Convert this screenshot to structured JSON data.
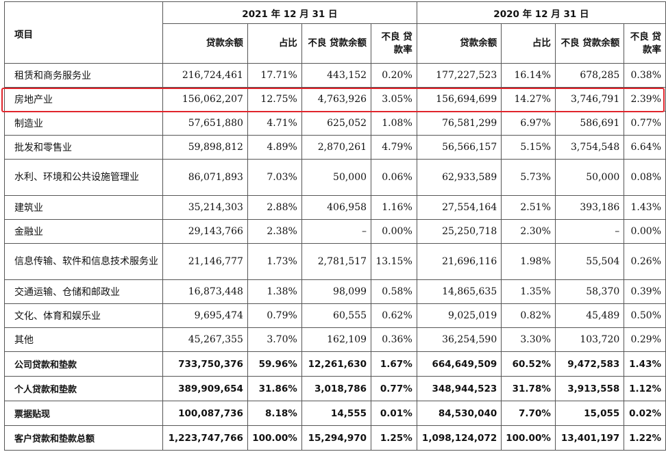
{
  "header": {
    "item_label": "项目",
    "period_2021": "2021 年 12 月 31 日",
    "period_2020": "2020 年 12 月 31 日",
    "col_balance": "贷款余额",
    "col_share": "占比",
    "col_npl": "不良\n贷款余额",
    "col_npl_rate": "不良\n贷款率"
  },
  "rows": [
    {
      "name": "租赁和商务服务业",
      "v": [
        "216,724,461",
        "17.71%",
        "443,152",
        "0.20%",
        "177,227,523",
        "16.14%",
        "678,285",
        "0.38%"
      ]
    },
    {
      "name": "房地产业",
      "v": [
        "156,062,207",
        "12.75%",
        "4,763,926",
        "3.05%",
        "156,694,699",
        "14.27%",
        "3,746,791",
        "2.39%"
      ]
    },
    {
      "name": "制造业",
      "v": [
        "57,651,880",
        "4.71%",
        "625,052",
        "1.08%",
        "76,581,299",
        "6.97%",
        "586,691",
        "0.77%"
      ]
    },
    {
      "name": "批发和零售业",
      "v": [
        "59,898,812",
        "4.89%",
        "2,870,261",
        "4.79%",
        "56,566,157",
        "5.15%",
        "3,754,548",
        "6.64%"
      ]
    },
    {
      "name": "水利、环境和公共设施管理业",
      "v": [
        "86,071,893",
        "7.03%",
        "50,000",
        "0.06%",
        "62,933,589",
        "5.73%",
        "50,000",
        "0.08%"
      ]
    },
    {
      "name": "建筑业",
      "v": [
        "35,214,303",
        "2.88%",
        "406,958",
        "1.16%",
        "27,554,164",
        "2.51%",
        "393,186",
        "1.43%"
      ]
    },
    {
      "name": "金融业",
      "v": [
        "29,143,766",
        "2.38%",
        "–",
        "0.00%",
        "25,250,718",
        "2.30%",
        "–",
        "0.00%"
      ]
    },
    {
      "name": "信息传输、软件和信息技术服务业",
      "v": [
        "21,146,777",
        "1.73%",
        "2,781,517",
        "13.15%",
        "21,696,116",
        "1.98%",
        "55,504",
        "0.26%"
      ]
    },
    {
      "name": "交通运输、仓储和邮政业",
      "v": [
        "16,873,448",
        "1.38%",
        "98,099",
        "0.58%",
        "14,865,635",
        "1.35%",
        "58,370",
        "0.39%"
      ]
    },
    {
      "name": "文化、体育和娱乐业",
      "v": [
        "9,695,474",
        "0.79%",
        "60,555",
        "0.62%",
        "9,025,019",
        "0.82%",
        "45,489",
        "0.50%"
      ]
    },
    {
      "name": "其他",
      "v": [
        "45,267,355",
        "3.70%",
        "162,109",
        "0.36%",
        "36,254,590",
        "3.30%",
        "103,720",
        "0.29%"
      ]
    }
  ],
  "summary_rows": [
    {
      "name": "公司贷款和垫款",
      "v": [
        "733,750,376",
        "59.96%",
        "12,261,630",
        "1.67%",
        "664,649,509",
        "60.52%",
        "9,472,583",
        "1.43%"
      ]
    },
    {
      "name": "个人贷款和垫款",
      "v": [
        "389,909,654",
        "31.86%",
        "3,018,786",
        "0.77%",
        "348,944,523",
        "31.78%",
        "3,913,558",
        "1.12%"
      ]
    },
    {
      "name": "票据贴现",
      "v": [
        "100,087,736",
        "8.18%",
        "14,555",
        "0.01%",
        "84,530,040",
        "7.70%",
        "15,055",
        "0.02%"
      ]
    },
    {
      "name": "客户贷款和垫款总额",
      "v": [
        "1,223,747,766",
        "100.00%",
        "15,294,970",
        "1.25%",
        "1,098,124,072",
        "100.00%",
        "13,401,197",
        "1.22%"
      ]
    }
  ],
  "highlight_color": "#e0242b"
}
